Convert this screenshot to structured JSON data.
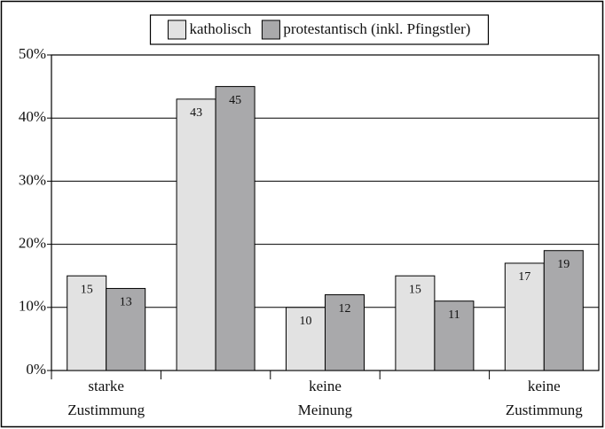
{
  "chart_data": {
    "type": "bar",
    "categories": [
      "starke\nZustimmung",
      null,
      "keine\nMeinung",
      null,
      "keine\nZustimmung"
    ],
    "series": [
      {
        "name": "katholisch",
        "color": "#e2e2e2",
        "values": [
          15,
          43,
          10,
          15,
          17
        ]
      },
      {
        "name": "protestantisch (inkl. Pfingstler)",
        "color": "#a9a9ab",
        "values": [
          13,
          45,
          12,
          11,
          19
        ]
      }
    ],
    "ylim": [
      0,
      50
    ],
    "yticks": [
      {
        "value": 0,
        "label": "0%"
      },
      {
        "value": 10,
        "label": "10%"
      },
      {
        "value": 20,
        "label": "20%"
      },
      {
        "value": 30,
        "label": "30%"
      },
      {
        "value": 40,
        "label": "40%"
      },
      {
        "value": 50,
        "label": "50%"
      }
    ],
    "grid": true,
    "legend": "top"
  }
}
